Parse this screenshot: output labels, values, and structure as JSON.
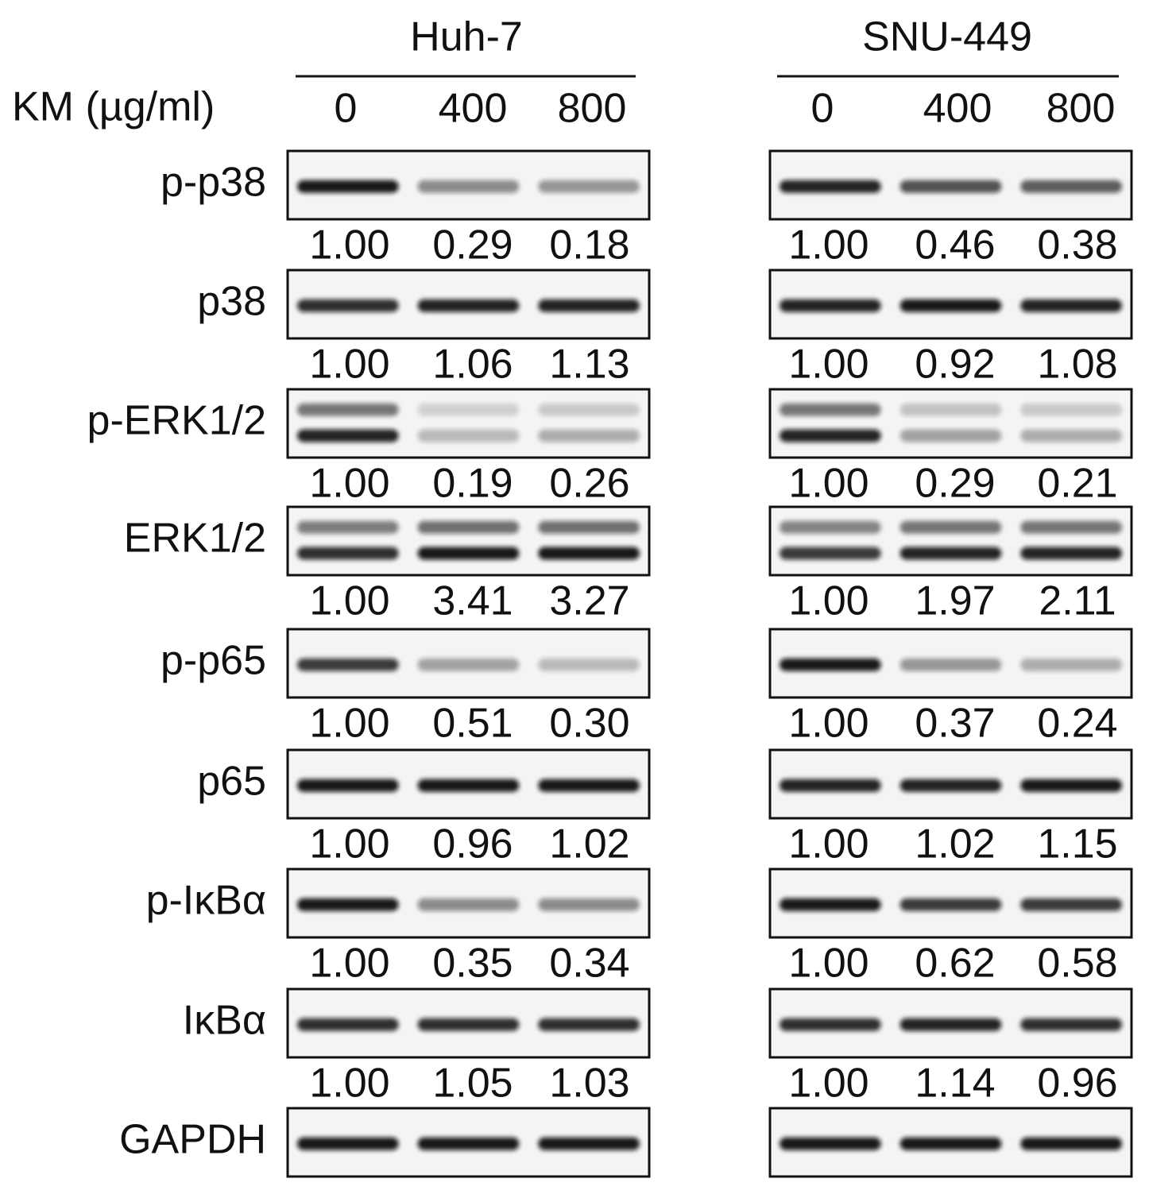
{
  "treatment_label": "KM (µg/ml)",
  "panels": [
    {
      "cell_line": "Huh-7",
      "doses": [
        "0",
        "400",
        "800"
      ]
    },
    {
      "cell_line": "SNU-449",
      "doses": [
        "0",
        "400",
        "800"
      ]
    }
  ],
  "blots": [
    {
      "label": "p-p38",
      "quant": [
        [
          "1.00",
          "0.29",
          "0.18"
        ],
        [
          "1.00",
          "0.46",
          "0.38"
        ]
      ]
    },
    {
      "label": "p38",
      "quant": [
        [
          "1.00",
          "1.06",
          "1.13"
        ],
        [
          "1.00",
          "0.92",
          "1.08"
        ]
      ]
    },
    {
      "label": "p-ERK1/2",
      "quant": [
        [
          "1.00",
          "0.19",
          "0.26"
        ],
        [
          "1.00",
          "0.29",
          "0.21"
        ]
      ]
    },
    {
      "label": "ERK1/2",
      "quant": [
        [
          "1.00",
          "3.41",
          "3.27"
        ],
        [
          "1.00",
          "1.97",
          "2.11"
        ]
      ]
    },
    {
      "label": "p-p65",
      "quant": [
        [
          "1.00",
          "0.51",
          "0.30"
        ],
        [
          "1.00",
          "0.37",
          "0.24"
        ]
      ]
    },
    {
      "label": "p65",
      "quant": [
        [
          "1.00",
          "0.96",
          "1.02"
        ],
        [
          "1.00",
          "1.02",
          "1.15"
        ]
      ]
    },
    {
      "label": "p-IκBα",
      "quant": [
        [
          "1.00",
          "0.35",
          "0.34"
        ],
        [
          "1.00",
          "0.62",
          "0.58"
        ]
      ]
    },
    {
      "label": "IκBα",
      "quant": [
        [
          "1.00",
          "1.05",
          "1.03"
        ],
        [
          "1.00",
          "1.14",
          "0.96"
        ]
      ]
    },
    {
      "label": "GAPDH"
    }
  ]
}
